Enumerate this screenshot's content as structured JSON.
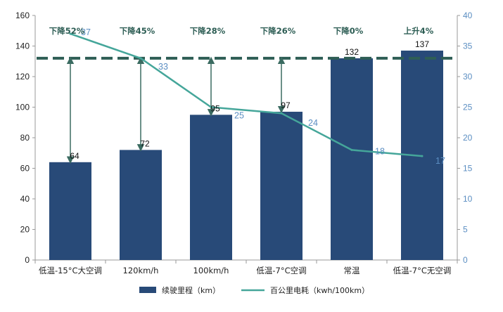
{
  "chart_data": {
    "type": "bar",
    "categories": [
      "低温-15°C大空调",
      "120km/h",
      "100km/h",
      "低温-7°C空调",
      "常温",
      "低温-7°C无空调"
    ],
    "series": [
      {
        "name": "续驶里程（km）",
        "type": "bar",
        "axis": "left",
        "values": [
          64,
          72,
          95,
          97,
          132,
          137
        ]
      },
      {
        "name": "百公里电耗（kwh/100km）",
        "type": "line",
        "axis": "right",
        "values": [
          37,
          33,
          25,
          24,
          18,
          17
        ]
      }
    ],
    "annotations": [
      "下降52%",
      "下降45%",
      "下降28%",
      "下降26%",
      "下降0%",
      "上升4%"
    ],
    "reference_line": {
      "axis": "right",
      "value": 33,
      "style": "dashed"
    },
    "ylim": [
      0,
      160
    ],
    "ylim_right": [
      0,
      40
    ],
    "yticks": [
      0,
      20,
      40,
      60,
      80,
      100,
      120,
      140,
      160
    ],
    "yticks_right": [
      0,
      5,
      10,
      15,
      20,
      25,
      30,
      35,
      40
    ],
    "legend_position": "bottom",
    "grid": false,
    "colors": {
      "bar": "#284a78",
      "line": "#45a69a",
      "arrow": "#3b6b61",
      "dashed": "#2e5e55",
      "right_axis": "#5b8ec2",
      "annotation": "#2e5e55"
    }
  }
}
